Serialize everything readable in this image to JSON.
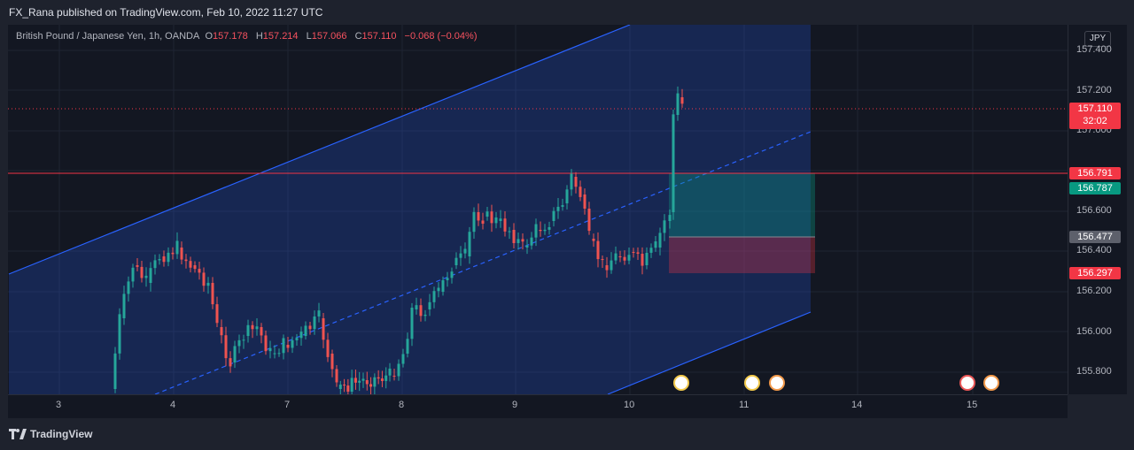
{
  "header": {
    "publisher": "FX_Rana published on TradingView.com, Feb 10, 2022 11:27 UTC"
  },
  "legend": {
    "symbol": "British Pound / Japanese Yen, 1h, OANDA",
    "o_label": "O",
    "o_val": "157.178",
    "h_label": "H",
    "h_val": "157.214",
    "l_label": "L",
    "l_val": "157.066",
    "c_label": "C",
    "c_val": "157.110",
    "change": "−0.068 (−0.04%)"
  },
  "price_axis": {
    "currency": "JPY",
    "ticks": [
      "157.400",
      "157.200",
      "157.000",
      "156.600",
      "156.400",
      "156.200",
      "156.000",
      "155.800"
    ],
    "current_price": "157.110",
    "countdown": "32:02",
    "level_red": "156.791",
    "level_green": "156.787",
    "level_gray": "156.477",
    "level_stop": "156.297"
  },
  "time_axis": {
    "ticks": [
      "3",
      "4",
      "7",
      "8",
      "9",
      "10",
      "11",
      "14",
      "15"
    ]
  },
  "colors": {
    "up": "#26a69a",
    "down": "#ef5350",
    "channel": "#2962ff",
    "bg": "#131722"
  },
  "footer": {
    "brand": "TradingView"
  }
}
